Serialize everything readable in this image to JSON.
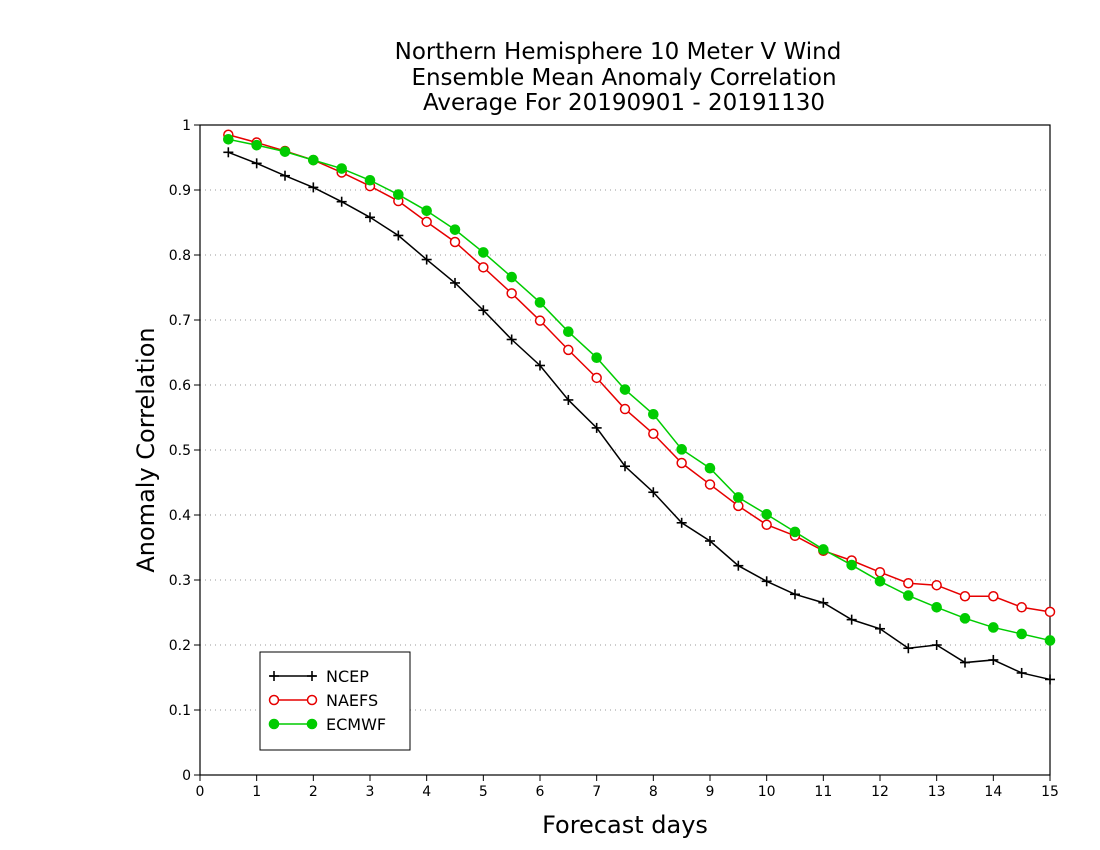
{
  "chart_data": {
    "type": "line",
    "title_lines": [
      "Northern Hemisphere 10 Meter V Wind",
      "Ensemble Mean Anomaly Correlation",
      "Average For 20190901 - 20191130"
    ],
    "xlabel": "Forecast days",
    "ylabel": "Anomaly Correlation",
    "xlim": [
      0,
      15
    ],
    "ylim": [
      0,
      1
    ],
    "x_ticks": [
      "0",
      "1",
      "2",
      "3",
      "4",
      "5",
      "6",
      "7",
      "8",
      "9",
      "10",
      "11",
      "12",
      "13",
      "14",
      "15"
    ],
    "y_ticks": [
      "0",
      "0.1",
      "0.2",
      "0.3",
      "0.4",
      "0.5",
      "0.6",
      "0.7",
      "0.8",
      "0.9",
      "1"
    ],
    "grid": "horizontal dotted",
    "legend_position": "bottom-left",
    "x": [
      0.5,
      1,
      1.5,
      2,
      2.5,
      3,
      3.5,
      4,
      4.5,
      5,
      5.5,
      6,
      6.5,
      7,
      7.5,
      8,
      8.5,
      9,
      9.5,
      10,
      10.5,
      11,
      11.5,
      12,
      12.5,
      13,
      13.5,
      14,
      14.5,
      15
    ],
    "series": [
      {
        "name": "NCEP",
        "color": "#000000",
        "marker": "plus",
        "values": [
          0.958,
          0.941,
          0.922,
          0.904,
          0.882,
          0.858,
          0.83,
          0.793,
          0.757,
          0.715,
          0.67,
          0.63,
          0.577,
          0.534,
          0.475,
          0.435,
          0.388,
          0.36,
          0.322,
          0.298,
          0.278,
          0.265,
          0.239,
          0.225,
          0.195,
          0.2,
          0.173,
          0.177,
          0.157,
          0.147
        ]
      },
      {
        "name": "NAEFS",
        "color": "#e60000",
        "marker": "open-circle",
        "values": [
          0.985,
          0.973,
          0.96,
          0.946,
          0.927,
          0.906,
          0.883,
          0.851,
          0.82,
          0.781,
          0.741,
          0.699,
          0.654,
          0.611,
          0.563,
          0.525,
          0.48,
          0.447,
          0.414,
          0.385,
          0.368,
          0.345,
          0.33,
          0.312,
          0.295,
          0.292,
          0.275,
          0.275,
          0.258,
          0.251
        ]
      },
      {
        "name": "ECMWF",
        "color": "#00cc00",
        "marker": "filled-circle",
        "values": [
          0.978,
          0.969,
          0.959,
          0.946,
          0.933,
          0.915,
          0.893,
          0.868,
          0.839,
          0.804,
          0.766,
          0.727,
          0.682,
          0.642,
          0.593,
          0.555,
          0.501,
          0.472,
          0.427,
          0.401,
          0.374,
          0.347,
          0.323,
          0.298,
          0.276,
          0.258,
          0.241,
          0.227,
          0.217,
          0.207
        ]
      }
    ]
  }
}
